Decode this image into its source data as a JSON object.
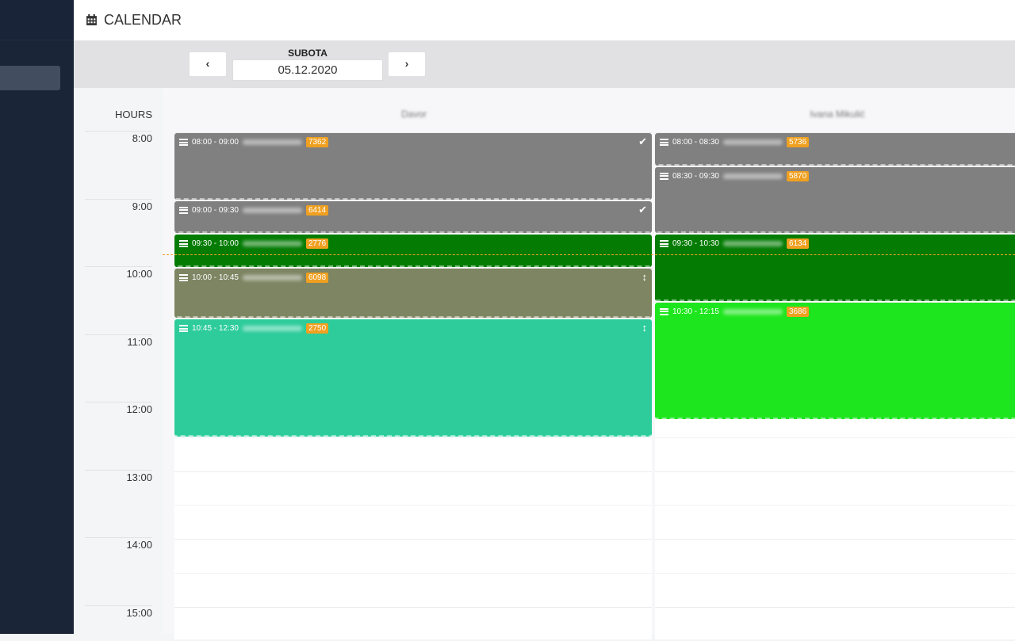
{
  "header": {
    "title": "CALENDAR",
    "icon": "calendar-icon"
  },
  "toolbar": {
    "prev": "‹",
    "next": "›",
    "day_name": "SUBOTA",
    "date": "05.12.2020"
  },
  "hours_label": "HOURS",
  "hours": [
    "8:00",
    "9:00",
    "10:00",
    "11:00",
    "12:00",
    "13:00",
    "14:00",
    "15:00"
  ],
  "current_time": "09:48",
  "columns": [
    {
      "name": "Davor",
      "events": [
        {
          "time": "08:00 - 09:00",
          "start": "08:00",
          "end": "09:00",
          "badge": "7362",
          "color": "#808080",
          "status": "check-icon"
        },
        {
          "time": "09:00 - 09:30",
          "start": "09:00",
          "end": "09:30",
          "badge": "6414",
          "color": "#808080",
          "status": "check-icon"
        },
        {
          "time": "09:30 - 10:00",
          "start": "09:30",
          "end": "10:00",
          "badge": "2776",
          "color": "#047c04",
          "status": ""
        },
        {
          "time": "10:00 - 10:45",
          "start": "10:00",
          "end": "10:45",
          "badge": "6098",
          "color": "#7e8563",
          "status": "resize-icon"
        },
        {
          "time": "10:45 - 12:30",
          "start": "10:45",
          "end": "12:30",
          "badge": "2750",
          "color": "#2ecc9b",
          "status": "resize-icon"
        }
      ]
    },
    {
      "name": "Ivana Mikulić",
      "events": [
        {
          "time": "08:00 - 08:30",
          "start": "08:00",
          "end": "08:30",
          "badge": "5736",
          "color": "#808080",
          "status": ""
        },
        {
          "time": "08:30 - 09:30",
          "start": "08:30",
          "end": "09:30",
          "badge": "5870",
          "color": "#808080",
          "status": ""
        },
        {
          "time": "09:30 - 10:30",
          "start": "09:30",
          "end": "10:30",
          "badge": "6134",
          "color": "#047c04",
          "status": ""
        },
        {
          "time": "10:30 - 12:15",
          "start": "10:30",
          "end": "12:15",
          "badge": "3686",
          "color": "#1ee61e",
          "status": ""
        }
      ]
    }
  ]
}
